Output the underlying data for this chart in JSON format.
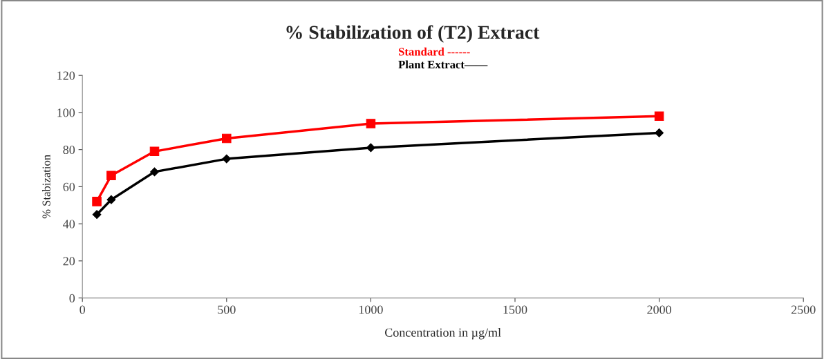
{
  "chart_data": {
    "type": "line",
    "title": "% Stabilization of (T2) Extract",
    "xlabel": "Concentration in µg/ml",
    "ylabel": "% Stabization",
    "x": [
      50,
      100,
      250,
      500,
      1000,
      2000
    ],
    "series": [
      {
        "name": "Standard ------",
        "color": "#ff0000",
        "marker": "square",
        "values": [
          52,
          66,
          79,
          86,
          94,
          98
        ]
      },
      {
        "name": "Plant Extract——",
        "color": "#000000",
        "marker": "diamond",
        "values": [
          45,
          53,
          68,
          75,
          81,
          89
        ]
      }
    ],
    "xlim": [
      0,
      2500
    ],
    "xticks": [
      0,
      500,
      1000,
      1500,
      2000,
      2500
    ],
    "ylim": [
      0,
      120
    ],
    "yticks": [
      0,
      20,
      40,
      60,
      80,
      100,
      120
    ],
    "grid": false,
    "legend": "top",
    "line_style": "solid"
  }
}
